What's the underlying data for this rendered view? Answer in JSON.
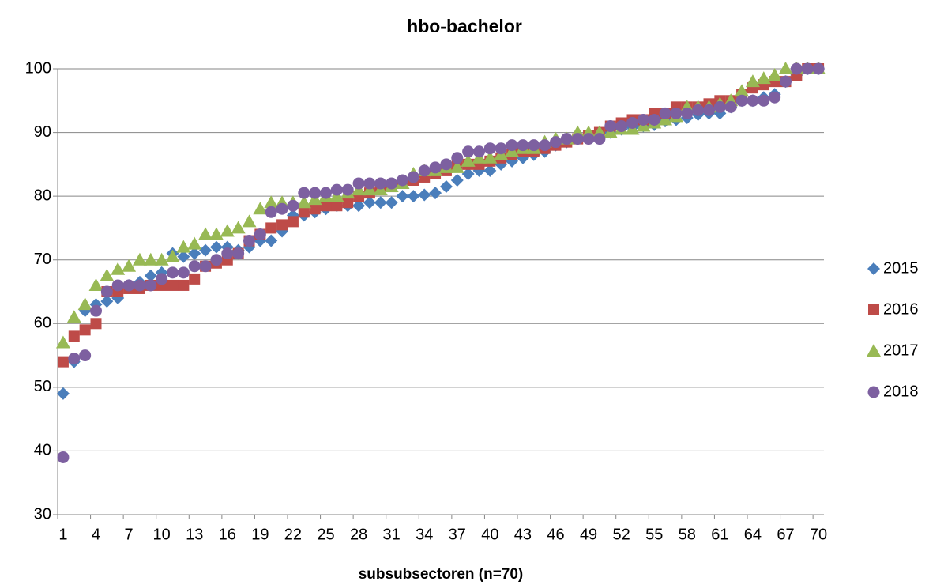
{
  "chart_data": {
    "type": "scatter",
    "title": "hbo-bachelor",
    "x_label": "subsubsectoren (n=70)",
    "categories": [
      1,
      null,
      null,
      4,
      null,
      null,
      7,
      null,
      null,
      10,
      null,
      null,
      13,
      null,
      null,
      16,
      null,
      null,
      19,
      null,
      null,
      22,
      null,
      null,
      25,
      null,
      null,
      28,
      null,
      null,
      31,
      null,
      null,
      34,
      null,
      null,
      37,
      null,
      null,
      40,
      null,
      null,
      43,
      null,
      null,
      46,
      null,
      null,
      49,
      null,
      null,
      52,
      null,
      null,
      55,
      null,
      null,
      58,
      null,
      null,
      61,
      null,
      null,
      64,
      null,
      null,
      67,
      null,
      null,
      70
    ],
    "ylim": [
      30,
      100
    ],
    "yticks": [
      30,
      40,
      50,
      60,
      70,
      80,
      90,
      100
    ],
    "grid": true,
    "legend": "right",
    "series": [
      {
        "name": "2015",
        "color": "#4a7ebb",
        "marker": "diamond",
        "values": [
          49,
          54,
          62,
          63,
          63.5,
          64,
          66,
          66.5,
          67.5,
          68,
          71,
          70.5,
          71,
          71.5,
          72,
          72,
          71.5,
          72,
          73,
          73,
          74.5,
          77,
          77,
          77.5,
          78,
          78.5,
          78.5,
          78.5,
          79,
          79,
          79,
          80,
          80,
          80.2,
          80.5,
          81.5,
          82.5,
          83.5,
          84,
          84,
          85,
          85.5,
          86,
          86.5,
          87,
          88,
          88.5,
          89,
          89.5,
          89.5,
          90,
          90.5,
          90.8,
          91,
          91.2,
          91.8,
          92,
          92.3,
          92.8,
          93,
          93,
          94,
          95,
          95,
          95.5,
          96,
          98,
          99,
          100,
          100
        ]
      },
      {
        "name": "2016",
        "color": "#be4b48",
        "marker": "square",
        "values": [
          54,
          58,
          59,
          60,
          65,
          65,
          65.5,
          65.5,
          66,
          66,
          66,
          66,
          67,
          69,
          69.5,
          70,
          71,
          73,
          74,
          75,
          75.5,
          76,
          77.5,
          78,
          78.5,
          78.5,
          79,
          80,
          80.5,
          81,
          81.5,
          82,
          82.5,
          83,
          83.5,
          84,
          85,
          85,
          85,
          85.5,
          86,
          86.5,
          87,
          87,
          87.5,
          88,
          88.5,
          89,
          89.5,
          90,
          91,
          91.5,
          92,
          92,
          93,
          93,
          94,
          94,
          94,
          94.5,
          95,
          95,
          96,
          97,
          97.5,
          98,
          98,
          99,
          100,
          100
        ]
      },
      {
        "name": "2017",
        "color": "#98b954",
        "marker": "triangle",
        "values": [
          57,
          61,
          63,
          66,
          67.5,
          68.5,
          69,
          70,
          70,
          70,
          70.5,
          72,
          72.5,
          74,
          74,
          74.5,
          75,
          76,
          78,
          79,
          79,
          79,
          79,
          79.5,
          80,
          80,
          80.5,
          81,
          81,
          81,
          81.5,
          82,
          83.5,
          84,
          84,
          84.5,
          84.5,
          85.5,
          86,
          86,
          86.5,
          87,
          87.5,
          87.5,
          88.5,
          89,
          89,
          90,
          90,
          90,
          90,
          90.5,
          90.5,
          91,
          91.5,
          92,
          92.5,
          94,
          94,
          94,
          94.5,
          95,
          96.5,
          98,
          98.5,
          99,
          100,
          100,
          100,
          100
        ]
      },
      {
        "name": "2018",
        "color": "#7d60a0",
        "marker": "circle",
        "values": [
          39,
          54.5,
          55,
          62,
          65,
          66,
          66,
          66,
          66,
          67,
          68,
          68,
          69,
          69,
          70,
          71,
          71,
          73,
          74,
          77.5,
          78,
          78.5,
          80.5,
          80.5,
          80.5,
          81,
          81,
          82,
          82,
          82,
          82,
          82.5,
          83,
          84,
          84.5,
          85,
          86,
          87,
          87,
          87.5,
          87.5,
          88,
          88,
          88,
          88,
          88.5,
          89,
          89,
          89,
          89,
          91,
          91,
          91.5,
          92,
          92,
          93,
          93,
          93,
          93.5,
          93.5,
          94,
          94,
          95,
          95,
          95,
          95.5,
          98,
          100,
          100,
          100
        ]
      }
    ]
  }
}
